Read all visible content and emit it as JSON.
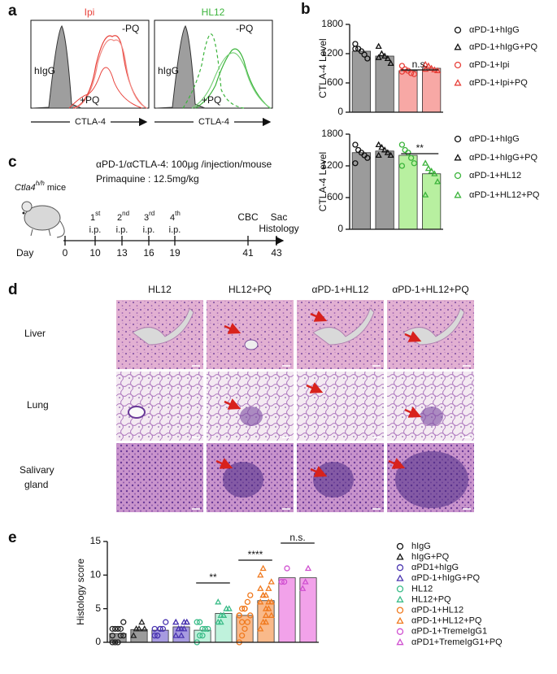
{
  "panel_labels": [
    "a",
    "b",
    "c",
    "d",
    "e"
  ],
  "flow": {
    "titles": [
      "Ipi",
      "HL12"
    ],
    "control": "hIgG",
    "minus": "-PQ",
    "plus": "+PQ",
    "xlabel": "CTLA-4"
  },
  "chart_data": [
    {
      "type": "bar",
      "ylabel": "CTLA-4 Level",
      "ylim": [
        0,
        1800
      ],
      "yticks": [
        0,
        600,
        1200,
        1800
      ],
      "categories": [
        "αPD-1+hIgG",
        "αPD-1+hIgG+PQ",
        "αPD-1+Ipi",
        "αPD-1+Ipi+PQ"
      ],
      "values": [
        1250,
        1150,
        850,
        900
      ],
      "colors": [
        "#9b9b9b",
        "#9b9b9b",
        "#f7a8a5",
        "#f7a8a5"
      ],
      "marker_colors": [
        "#111111",
        "#111111",
        "#e8413a",
        "#e8413a"
      ],
      "markers": [
        "circle",
        "triangle",
        "circle",
        "triangle"
      ],
      "points": [
        [
          1400,
          1300,
          1250,
          1180,
          1100,
          1300
        ],
        [
          1350,
          1200,
          1150,
          1100,
          1000,
          1120
        ],
        [
          950,
          880,
          850,
          800,
          780,
          830
        ],
        [
          980,
          950,
          900,
          870,
          850,
          880
        ]
      ],
      "annotations": [
        "n.s."
      ]
    },
    {
      "type": "bar",
      "ylabel": "CTLA-4 Level",
      "ylim": [
        0,
        1800
      ],
      "yticks": [
        0,
        600,
        1200,
        1800
      ],
      "categories": [
        "αPD-1+hIgG",
        "αPD-1+hIgG+PQ",
        "αPD-1+HL12",
        "αPD-1+HL12+PQ"
      ],
      "values": [
        1450,
        1480,
        1400,
        1050
      ],
      "colors": [
        "#9b9b9b",
        "#9b9b9b",
        "#b8f0a0",
        "#b8f0a0"
      ],
      "marker_colors": [
        "#111111",
        "#111111",
        "#3cb43c",
        "#3cb43c"
      ],
      "markers": [
        "circle",
        "triangle",
        "circle",
        "triangle"
      ],
      "points": [
        [
          1600,
          1500,
          1450,
          1400,
          1350,
          1250
        ],
        [
          1600,
          1550,
          1500,
          1450,
          1400,
          1400
        ],
        [
          1600,
          1500,
          1450,
          1350,
          1250,
          1200
        ],
        [
          1250,
          1150,
          1100,
          1050,
          900,
          650
        ]
      ],
      "annotations": [
        "**"
      ]
    },
    {
      "type": "bar",
      "ylabel": "Histology score",
      "ylim": [
        0,
        15
      ],
      "yticks": [
        0,
        5,
        10,
        15
      ],
      "categories": [
        "hIgG",
        "hIgG+PQ",
        "αPD1+hIgG",
        "αPD-1+hIgG+PQ",
        "HL12",
        "HL12+PQ",
        "αPD-1+HL12",
        "αPD-1+HL12+PQ",
        "αPD-1+TremeIgG1",
        "αPD1+TremeIgG1+PQ"
      ],
      "values": [
        1.3,
        1.9,
        1.8,
        2.3,
        1.8,
        4.3,
        4.0,
        6.2,
        9.6,
        9.6
      ],
      "colors": [
        "#9b9b9b",
        "#9b9b9b",
        "#a79be0",
        "#a79be0",
        "#bff2dc",
        "#bff2dc",
        "#f9b98a",
        "#f9b98a",
        "#f2a2ea",
        "#f2a2ea"
      ],
      "marker_colors": [
        "#222222",
        "#222222",
        "#4a35b0",
        "#4a35b0",
        "#3dbd8a",
        "#3dbd8a",
        "#f07a1f",
        "#f07a1f",
        "#d050d0",
        "#d050d0"
      ],
      "markers": [
        "circle",
        "triangle",
        "circle",
        "triangle",
        "circle",
        "triangle",
        "circle",
        "triangle",
        "circle",
        "triangle"
      ],
      "points": [
        [
          0,
          0,
          0,
          1,
          1,
          1,
          2,
          2,
          2,
          3,
          2
        ],
        [
          1,
          2,
          2,
          3,
          2
        ],
        [
          1,
          1,
          2,
          2,
          3,
          2,
          1,
          2
        ],
        [
          1,
          2,
          2,
          3,
          3,
          3,
          2,
          1,
          2,
          3,
          3
        ],
        [
          0,
          1,
          1,
          2,
          2,
          3,
          3,
          2
        ],
        [
          3,
          4,
          4,
          5,
          5,
          6,
          3,
          4
        ],
        [
          0,
          1,
          2,
          3,
          4,
          4,
          5,
          5,
          6,
          7,
          4,
          3,
          5
        ],
        [
          2,
          3,
          4,
          5,
          6,
          6,
          7,
          7,
          8,
          9,
          10,
          11,
          5,
          6,
          4,
          8,
          7,
          3
        ],
        [
          9,
          9,
          11
        ],
        [
          8,
          9,
          11
        ]
      ],
      "annotations": [
        "**",
        "****",
        "n.s."
      ]
    }
  ],
  "timeline": {
    "treatment": "αPD-1/αCTLA-4: 100μg /injection/mouse",
    "primaquine": "Primaquine : 12.5mg/kg",
    "mouse": {
      "gene": "Ctla4",
      "superscript": "h/h",
      "text": " mice"
    },
    "events": [
      {
        "ordinal": "1",
        "suffix": "st",
        "text": "i.p."
      },
      {
        "ordinal": "2",
        "suffix": "nd",
        "text": "i.p."
      },
      {
        "ordinal": "3",
        "suffix": "rd",
        "text": "i.p."
      },
      {
        "ordinal": "4",
        "suffix": "th",
        "text": "i.p."
      },
      {
        "text": "CBC"
      },
      {
        "text": "Sac",
        "text2": "Histology"
      }
    ],
    "day_label": "Day",
    "days": [
      "0",
      "10",
      "13",
      "16",
      "19",
      "41",
      "43"
    ]
  },
  "histology": {
    "columns": [
      "HL12",
      "HL12+PQ",
      "αPD-1+HL12",
      "αPD-1+HL12+PQ"
    ],
    "rows": [
      "Liver",
      "Lung",
      "Salivary",
      "gland"
    ]
  }
}
